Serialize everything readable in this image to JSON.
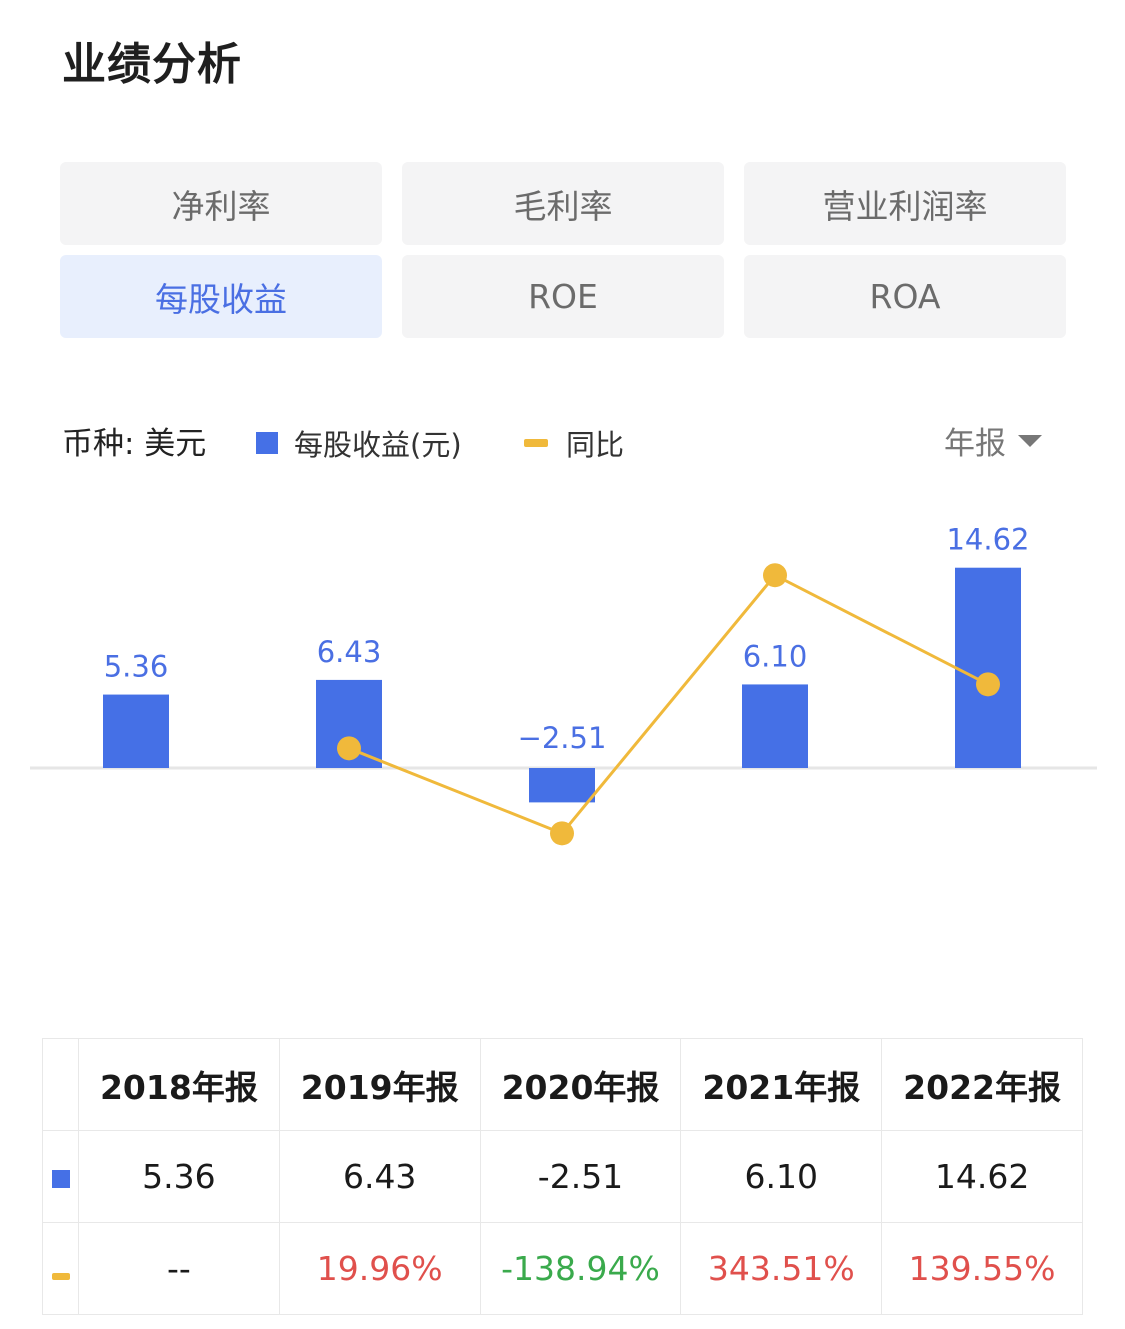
{
  "page_title": "业绩分析",
  "tabs": [
    {
      "label": "净利率",
      "active": false
    },
    {
      "label": "毛利率",
      "active": false
    },
    {
      "label": "营业利润率",
      "active": false
    },
    {
      "label": "每股收益",
      "active": true
    },
    {
      "label": "ROE",
      "active": false
    },
    {
      "label": "ROA",
      "active": false
    }
  ],
  "currency_label": "币种: 美元",
  "legend": {
    "bar": "每股收益(元)",
    "line": "同比"
  },
  "period_select": "年报",
  "chart_data": {
    "type": "bar",
    "categories": [
      "2018年报",
      "2019年报",
      "2020年报",
      "2021年报",
      "2022年报"
    ],
    "series": [
      {
        "name": "每股收益(元)",
        "type": "bar",
        "values": [
          5.36,
          6.43,
          -2.51,
          6.1,
          14.62
        ],
        "color": "#4570e6"
      },
      {
        "name": "同比",
        "type": "line",
        "values": [
          null,
          19.96,
          -138.94,
          343.51,
          139.55
        ],
        "color": "#f0b93b"
      }
    ],
    "bar_labels": [
      "5.36",
      "6.43",
      "−2.51",
      "6.10",
      "14.62"
    ]
  },
  "table": {
    "headers": [
      "2018年报",
      "2019年报",
      "2020年报",
      "2021年报",
      "2022年报"
    ],
    "eps_row": [
      "5.36",
      "6.43",
      "-2.51",
      "6.10",
      "14.62"
    ],
    "yoy_row": [
      "--",
      "19.96%",
      "-138.94%",
      "343.51%",
      "139.55%"
    ]
  },
  "colors": {
    "accent": "#4570e6",
    "line": "#f0b93b",
    "positive": "#e0504c",
    "negative": "#3aaa4c"
  }
}
